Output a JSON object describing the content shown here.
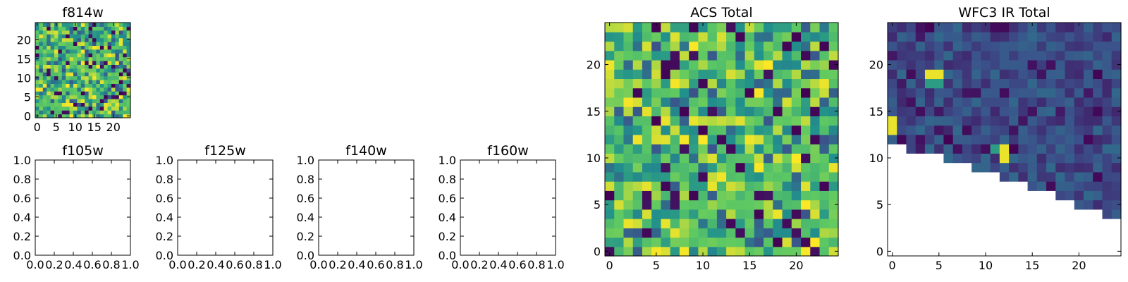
{
  "colormap": {
    "name": "viridis",
    "stops": [
      "#440154",
      "#3b528b",
      "#21918c",
      "#5ec962",
      "#fde725"
    ]
  },
  "chart_data": [
    {
      "type": "heatmap",
      "title": "f814w",
      "grid_size": 25,
      "xlim": [
        -0.5,
        24.5
      ],
      "ylim": [
        -0.5,
        24.5
      ],
      "xticks": [
        "0",
        "5",
        "10",
        "15",
        "20"
      ],
      "yticks": [
        "0",
        "5",
        "10",
        "15",
        "20"
      ],
      "value_range": [
        0,
        1
      ],
      "value_distribution": "mostly 0.5-0.95 with scattered low cells",
      "masked_region": "none"
    },
    {
      "type": "empty",
      "title": "f105w",
      "xticks": [
        "0.0",
        "0.2",
        "0.4",
        "0.6",
        "0.8",
        "1.0"
      ],
      "yticks": [
        "0.0",
        "0.2",
        "0.4",
        "0.6",
        "0.8",
        "1.0"
      ],
      "xlim": [
        0,
        1
      ],
      "ylim": [
        0,
        1
      ]
    },
    {
      "type": "empty",
      "title": "f125w",
      "xticks": [
        "0.0",
        "0.2",
        "0.4",
        "0.6",
        "0.8",
        "1.0"
      ],
      "yticks": [
        "0.0",
        "0.2",
        "0.4",
        "0.6",
        "0.8",
        "1.0"
      ],
      "xlim": [
        0,
        1
      ],
      "ylim": [
        0,
        1
      ]
    },
    {
      "type": "empty",
      "title": "f140w",
      "xticks": [
        "0.0",
        "0.2",
        "0.4",
        "0.6",
        "0.8",
        "1.0"
      ],
      "yticks": [
        "0.0",
        "0.2",
        "0.4",
        "0.6",
        "0.8",
        "1.0"
      ],
      "xlim": [
        0,
        1
      ],
      "ylim": [
        0,
        1
      ]
    },
    {
      "type": "empty",
      "title": "f160w",
      "xticks": [
        "0.0",
        "0.2",
        "0.4",
        "0.6",
        "0.8",
        "1.0"
      ],
      "yticks": [
        "0.0",
        "0.2",
        "0.4",
        "0.6",
        "0.8",
        "1.0"
      ],
      "xlim": [
        0,
        1
      ],
      "ylim": [
        0,
        1
      ]
    },
    {
      "type": "heatmap",
      "title": "ACS Total",
      "grid_size": 25,
      "xlim": [
        -0.5,
        24.5
      ],
      "ylim": [
        -0.5,
        24.5
      ],
      "xticks": [
        "0",
        "5",
        "10",
        "15",
        "20"
      ],
      "yticks": [
        "0",
        "5",
        "10",
        "15",
        "20"
      ],
      "value_range": [
        0,
        1
      ],
      "value_distribution": "mostly 0.55-0.95 with scattered low cells",
      "masked_region": "none"
    },
    {
      "type": "heatmap",
      "title": "WFC3 IR Total",
      "grid_size": 25,
      "xlim": [
        -0.5,
        24.5
      ],
      "ylim": [
        -0.5,
        24.5
      ],
      "xticks": [
        "0",
        "5",
        "10",
        "15",
        "20"
      ],
      "yticks": [
        "0",
        "5",
        "10",
        "15",
        "20"
      ],
      "value_range": [
        0,
        1
      ],
      "value_distribution": "mostly 0.1-0.35 with a few bright cells near (0,14), (5,19), (12,11)",
      "masked_region": "lower-right triangle (blank cells below a stepped diagonal from y=11.5 at x=0 to y=3.5 at x=24)",
      "mask_boundary_start_row": [
        12,
        12,
        11,
        11,
        11,
        11,
        10,
        10,
        10,
        9,
        9,
        9,
        8,
        8,
        8,
        7,
        7,
        7,
        6,
        6,
        5,
        5,
        5,
        4,
        4
      ]
    }
  ]
}
